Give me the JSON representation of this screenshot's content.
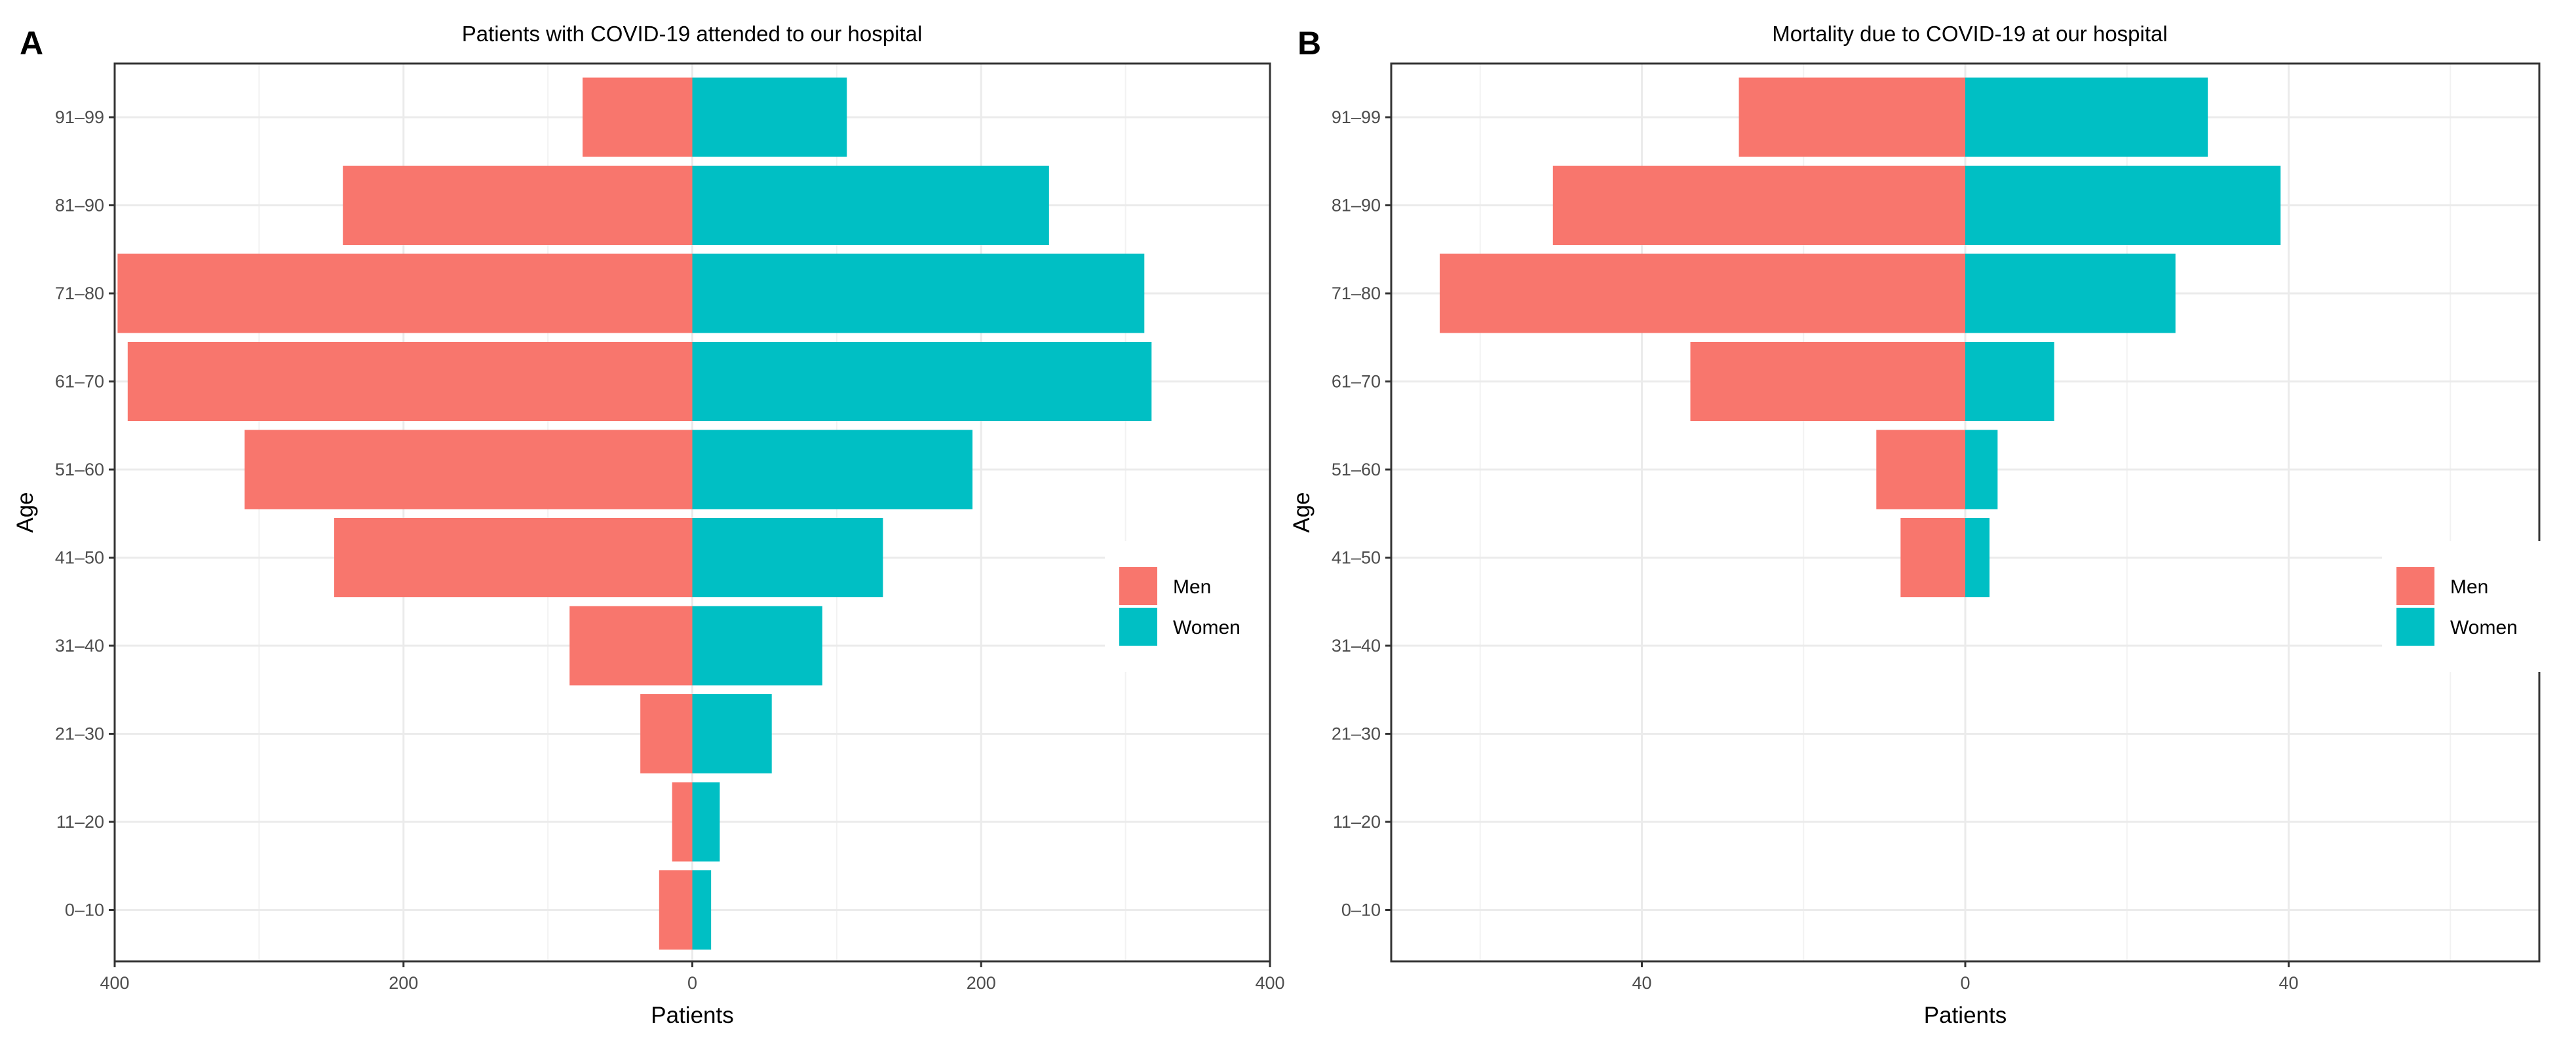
{
  "chart_data": [
    {
      "type": "bar",
      "orientation": "horizontal",
      "panel_label": "A",
      "title": "Patients with COVID-19 attended to our hospital",
      "xlabel": "Patients",
      "ylabel": "Age",
      "xlim": [
        -400,
        400
      ],
      "x_ticks": [
        -400,
        -200,
        0,
        200,
        400
      ],
      "x_tick_labels": [
        "400",
        "200",
        "0",
        "200",
        "400"
      ],
      "grid": true,
      "legend_position": "right-center",
      "categories": [
        "0–10",
        "11–20",
        "21–30",
        "31–40",
        "41–50",
        "51–60",
        "61–70",
        "71–80",
        "81–90",
        "91–99"
      ],
      "series": [
        {
          "name": "Men",
          "color": "#F8766D",
          "values": [
            23,
            14,
            36,
            85,
            248,
            310,
            391,
            398,
            242,
            76
          ]
        },
        {
          "name": "Women",
          "color": "#00BFC4",
          "values": [
            13,
            19,
            55,
            90,
            132,
            194,
            318,
            313,
            247,
            107
          ]
        }
      ]
    },
    {
      "type": "bar",
      "orientation": "horizontal",
      "panel_label": "B",
      "title": "Mortality due to COVID-19 at our hospital",
      "xlabel": "Patients",
      "ylabel": "Age",
      "xlim": [
        -71,
        71
      ],
      "x_ticks": [
        -40,
        0,
        40
      ],
      "x_tick_labels": [
        "40",
        "0",
        "40"
      ],
      "grid": true,
      "legend_position": "right-center",
      "categories": [
        "0–10",
        "11–20",
        "21–30",
        "31–40",
        "41–50",
        "51–60",
        "61–70",
        "71–80",
        "81–90",
        "91–99"
      ],
      "series": [
        {
          "name": "Men",
          "color": "#F8766D",
          "values": [
            0,
            0,
            0,
            0,
            8,
            11,
            34,
            65,
            51,
            28
          ]
        },
        {
          "name": "Women",
          "color": "#00BFC4",
          "values": [
            0,
            0,
            0,
            0,
            3,
            4,
            11,
            26,
            39,
            30
          ]
        }
      ]
    }
  ]
}
